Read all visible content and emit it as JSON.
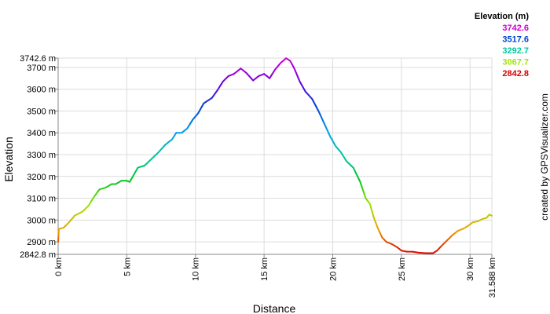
{
  "chart_data": {
    "type": "line",
    "xlabel": "Distance",
    "ylabel": "Elevation",
    "xlim": [
      0,
      31.588
    ],
    "ylim": [
      2842.8,
      3742.6
    ],
    "x_ticks": [
      {
        "value": 0,
        "label": "0 km"
      },
      {
        "value": 5,
        "label": "5 km"
      },
      {
        "value": 10,
        "label": "10 km"
      },
      {
        "value": 15,
        "label": "15 km"
      },
      {
        "value": 20,
        "label": "20 km"
      },
      {
        "value": 25,
        "label": "25 km"
      },
      {
        "value": 30,
        "label": "30 km"
      },
      {
        "value": 31.588,
        "label": "31.588 km"
      }
    ],
    "y_ticks": [
      {
        "value": 2842.8,
        "label": "2842.8 m"
      },
      {
        "value": 2900,
        "label": "2900 m"
      },
      {
        "value": 3000,
        "label": "3000 m"
      },
      {
        "value": 3100,
        "label": "3100 m"
      },
      {
        "value": 3200,
        "label": "3200 m"
      },
      {
        "value": 3300,
        "label": "3300 m"
      },
      {
        "value": 3400,
        "label": "3400 m"
      },
      {
        "value": 3500,
        "label": "3500 m"
      },
      {
        "value": 3600,
        "label": "3600 m"
      },
      {
        "value": 3700,
        "label": "3700 m"
      },
      {
        "value": 3742.6,
        "label": "3742.6 m"
      }
    ],
    "legend": {
      "title": "Elevation (m)",
      "position": "top-right",
      "entries": [
        {
          "label": "3742.6",
          "color": "#d200d2"
        },
        {
          "label": "3517.6",
          "color": "#0044d0"
        },
        {
          "label": "3292.7",
          "color": "#00c8a0"
        },
        {
          "label": "3067.7",
          "color": "#9ee600"
        },
        {
          "label": "2842.8",
          "color": "#d80000"
        }
      ]
    },
    "color_scale": [
      {
        "elevation": 2842.8,
        "color": "#d80000"
      },
      {
        "elevation": 2955,
        "color": "#f0a000"
      },
      {
        "elevation": 3067.7,
        "color": "#9ee600"
      },
      {
        "elevation": 3180,
        "color": "#00c820"
      },
      {
        "elevation": 3292.7,
        "color": "#00c8a0"
      },
      {
        "elevation": 3405,
        "color": "#00a0f0"
      },
      {
        "elevation": 3517.6,
        "color": "#0044d0"
      },
      {
        "elevation": 3630,
        "color": "#7000e0"
      },
      {
        "elevation": 3742.6,
        "color": "#d200d2"
      }
    ],
    "grid": true,
    "series": [
      {
        "x": [
          0,
          0.05,
          0.1,
          0.4,
          0.8,
          1.2,
          1.8,
          2.2,
          2.6,
          3.0,
          3.5,
          3.9,
          4.2,
          4.6,
          5.0,
          5.2,
          5.4,
          5.8,
          6.3,
          6.8,
          7.3,
          7.8,
          8.3,
          8.6,
          9.0,
          9.4,
          9.8,
          10.2,
          10.6,
          11.2,
          11.6,
          12.0,
          12.4,
          12.8,
          13.3,
          13.7,
          14.2,
          14.6,
          15.0,
          15.4,
          15.8,
          16.2,
          16.6,
          16.9,
          17.2,
          17.6,
          18.0,
          18.5,
          19.0,
          19.4,
          19.8,
          20.2,
          20.6,
          21.0,
          21.5,
          22.0,
          22.4,
          22.7,
          23.0,
          23.3,
          23.6,
          23.9,
          24.3,
          24.7,
          25.0,
          25.4,
          25.8,
          26.3,
          26.8,
          27.3,
          27.6,
          27.9,
          28.3,
          28.7,
          29.1,
          29.5,
          29.9,
          30.2,
          30.6,
          30.9,
          31.2,
          31.4,
          31.588
        ],
        "y": [
          2900,
          2955,
          2960,
          2965,
          2990,
          3020,
          3040,
          3065,
          3105,
          3140,
          3150,
          3165,
          3165,
          3180,
          3180,
          3175,
          3195,
          3240,
          3250,
          3280,
          3310,
          3345,
          3370,
          3400,
          3400,
          3420,
          3460,
          3490,
          3535,
          3560,
          3595,
          3635,
          3660,
          3670,
          3695,
          3675,
          3640,
          3660,
          3670,
          3650,
          3690,
          3720,
          3742,
          3730,
          3695,
          3635,
          3590,
          3555,
          3495,
          3440,
          3385,
          3340,
          3310,
          3270,
          3240,
          3175,
          3100,
          3075,
          3010,
          2960,
          2920,
          2900,
          2890,
          2875,
          2860,
          2855,
          2855,
          2850,
          2848,
          2848,
          2860,
          2880,
          2905,
          2930,
          2950,
          2960,
          2975,
          2990,
          2995,
          3005,
          3010,
          3025,
          3020
        ]
      }
    ],
    "credit": "created by GPSVisualizer.com"
  }
}
